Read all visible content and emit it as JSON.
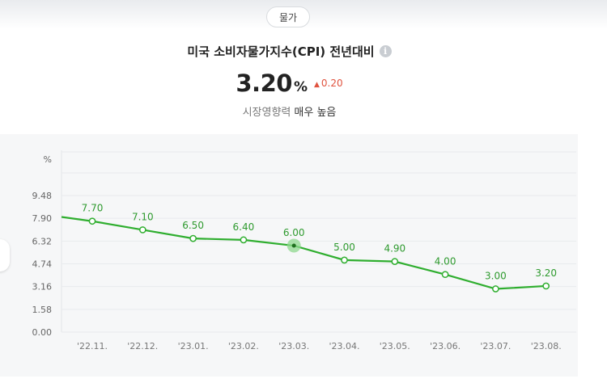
{
  "header": {
    "category_chip": "물가",
    "title": "미국 소비자물가지수(CPI) 전년대비",
    "info_icon": "info-icon",
    "value": "3.20",
    "unit": "%",
    "delta": "0.20",
    "delta_direction": "up",
    "influence_label": "시장영향력",
    "influence_value": "매우 높음"
  },
  "colors": {
    "line": "#2fae2f",
    "delta_up": "#e0533f",
    "highlight": "#8fd88f"
  },
  "chart_data": {
    "type": "line",
    "y_unit_label": "%",
    "categories": [
      "'22.11.",
      "'22.12.",
      "'23.01.",
      "'23.02.",
      "'23.03.",
      "'23.04.",
      "'23.05.",
      "'23.06.",
      "'23.07.",
      "'23.08."
    ],
    "values": [
      7.7,
      7.1,
      6.5,
      6.4,
      6.0,
      5.0,
      4.9,
      4.0,
      3.0,
      3.2
    ],
    "value_labels": [
      "7.70",
      "7.10",
      "6.50",
      "6.40",
      "6.00",
      "5.00",
      "4.90",
      "4.00",
      "3.00",
      "3.20"
    ],
    "yticks": [
      "0.00",
      "1.58",
      "3.16",
      "4.74",
      "6.32",
      "7.90",
      "9.48"
    ],
    "ylim": [
      0,
      9.48
    ],
    "highlighted_index": 4,
    "grid": true
  }
}
